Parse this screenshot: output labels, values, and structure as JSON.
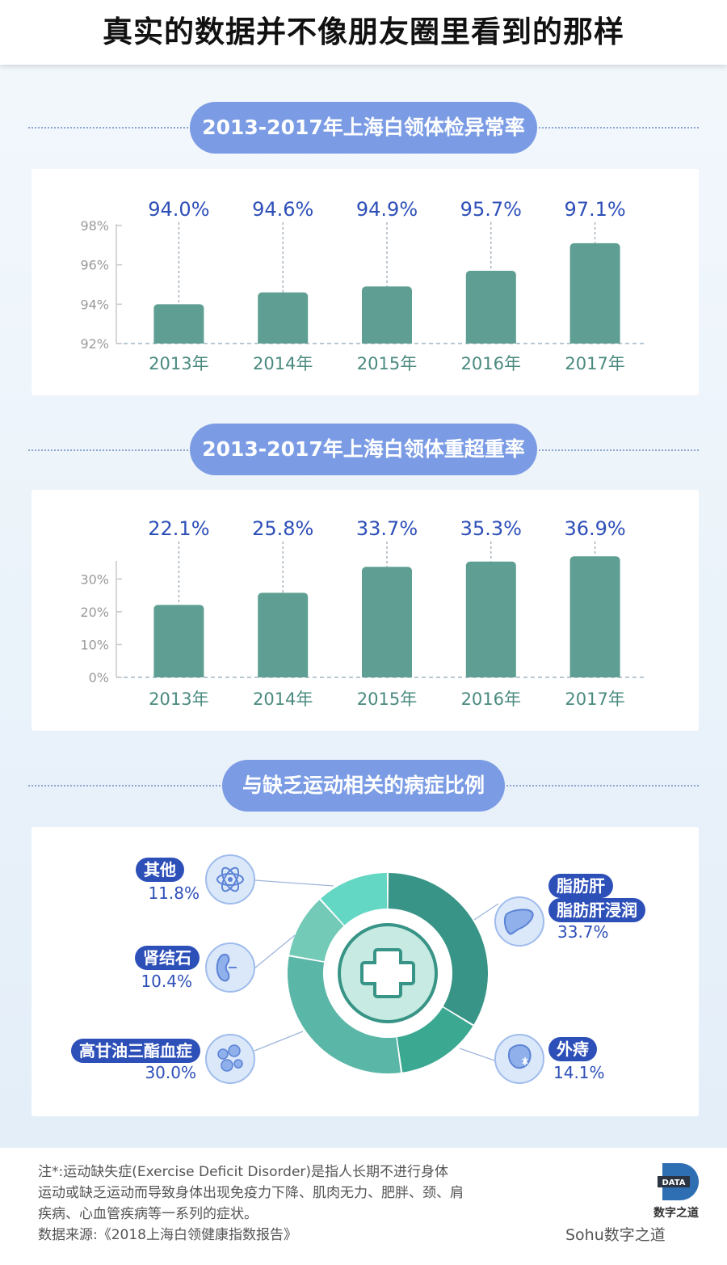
{
  "header": {
    "title": "真实的数据并不像朋友圈里看到的那样"
  },
  "charts": [
    {
      "section_title": "2013-2017年上海白领体检异常率",
      "chart_data": {
        "type": "bar",
        "categories": [
          "2013年",
          "2014年",
          "2015年",
          "2016年",
          "2017年"
        ],
        "values": [
          94.0,
          94.6,
          94.9,
          95.7,
          97.1
        ],
        "value_labels": [
          "94.0%",
          "94.6%",
          "94.9%",
          "95.7%",
          "97.1%"
        ],
        "yticks": [
          "92%",
          "94%",
          "96%",
          "98%"
        ],
        "ylim": [
          92,
          98
        ],
        "bar_color": "#5f9e92",
        "label_color": "#2d4fb8"
      }
    },
    {
      "section_title": "2013-2017年上海白领体重超重率",
      "chart_data": {
        "type": "bar",
        "categories": [
          "2013年",
          "2014年",
          "2015年",
          "2016年",
          "2017年"
        ],
        "values": [
          22.1,
          25.8,
          33.7,
          35.3,
          36.9
        ],
        "value_labels": [
          "22.1%",
          "25.8%",
          "33.7%",
          "35.3%",
          "36.9%"
        ],
        "yticks": [
          "0%",
          "10%",
          "20%",
          "30%"
        ],
        "ylim": [
          0,
          35
        ],
        "bar_color": "#5f9e92",
        "label_color": "#2d4fb8"
      }
    }
  ],
  "donut": {
    "section_title": "与缺乏运动相关的病症比例",
    "chart_data": {
      "type": "pie",
      "slices": [
        {
          "name": "脂肪肝\n脂肪肝浸润",
          "value": 33.7,
          "color": "#389486"
        },
        {
          "name": "外痔",
          "value": 14.1,
          "color": "#3ba892"
        },
        {
          "name": "高甘油三酯血症",
          "value": 30.0,
          "color": "#5ab7a7"
        },
        {
          "name": "肾结石",
          "value": 10.4,
          "color": "#73cbb7"
        },
        {
          "name": "其他",
          "value": 11.8,
          "color": "#64d7c4"
        }
      ]
    },
    "labels": {
      "other": {
        "name": "其他",
        "pct": "11.8%"
      },
      "stone": {
        "name": "肾结石",
        "pct": "10.4%"
      },
      "tg": {
        "name": "高甘油三酯血症",
        "pct": "30.0%"
      },
      "liver1": "脂肪肝",
      "liver2": "脂肪肝浸润",
      "liver_pct": "33.7%",
      "hem": {
        "name": "外痔",
        "pct": "14.1%"
      }
    }
  },
  "footer": {
    "note_lines": [
      "注*:运动缺失症(Exercise  Deficit  Disorder)是指人长期不进行身体",
      "运动或缺乏运动而导致身体出现免疫力下降、肌肉无力、肥胖、颈、肩",
      "疾病、心血管疾病等一系列的症状。",
      "数据来源:《2018上海白领健康指数报告》"
    ],
    "logo_mark": "DATA",
    "logo_name": "数字之道",
    "watermark": "Sohu数字之道"
  }
}
